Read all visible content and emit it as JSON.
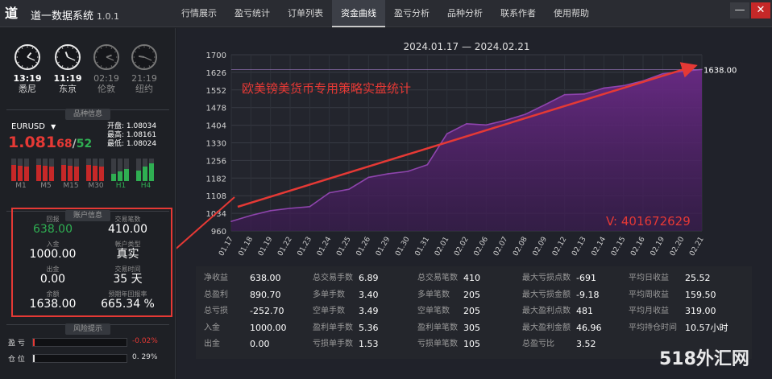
{
  "app": {
    "name": "道一数据系统",
    "version": "1.0.1",
    "logo": "道"
  },
  "tabs": [
    "行情展示",
    "盈亏统计",
    "订单列表",
    "资金曲线",
    "盈亏分析",
    "品种分析",
    "联系作者",
    "使用帮助"
  ],
  "active_tab": 3,
  "window": {
    "min_label": "—",
    "close_label": "✕"
  },
  "clocks": [
    {
      "time": "13:19",
      "city": "悉尼",
      "dim": false
    },
    {
      "time": "11:19",
      "city": "东京",
      "dim": false
    },
    {
      "time": "02:19",
      "city": "伦敦",
      "dim": true
    },
    {
      "time": "21:19",
      "city": "纽约",
      "dim": true
    }
  ],
  "sections": {
    "symbol": "品种信息",
    "account": "账户信息",
    "risk": "风险提示"
  },
  "symbol": {
    "name": "EURUSD",
    "dropdown": "▼",
    "price_main": "1.081",
    "price_red": "68",
    "slash": "/",
    "price_green": "52",
    "open": "开盘: 1.08034",
    "high": "最高: 1.08161",
    "low": "最低: 1.08024"
  },
  "timeframes": [
    {
      "label": "M1",
      "up": false,
      "level": 0.7
    },
    {
      "label": "M5",
      "up": false,
      "level": 0.7
    },
    {
      "label": "M15",
      "up": false,
      "level": 0.7
    },
    {
      "label": "M30",
      "up": false,
      "level": 0.7
    },
    {
      "label": "H1",
      "up": true,
      "level": 0.55
    },
    {
      "label": "H4",
      "up": true,
      "level": 0.8
    }
  ],
  "account": [
    {
      "k": "回报",
      "v": "638.00",
      "green": true
    },
    {
      "k": "交易笔数",
      "v": "410.00",
      "green": false
    },
    {
      "k": "入金",
      "v": "1000.00",
      "green": false
    },
    {
      "k": "帐户类型",
      "v": "真实",
      "green": false
    },
    {
      "k": "出金",
      "v": "0.00",
      "green": false
    },
    {
      "k": "交易时间",
      "v": "35 天",
      "green": false
    },
    {
      "k": "余额",
      "v": "1638.00",
      "green": false
    },
    {
      "k": "预期年回报率",
      "v": "665.34 %",
      "green": false
    }
  ],
  "risk": [
    {
      "label": "盈 亏",
      "value": "-0.02%",
      "color": "#e53935",
      "level": 0.01
    },
    {
      "label": "仓 位",
      "value": "0. 29%",
      "color": "#dddddd",
      "level": 0.0
    }
  ],
  "chart_data": {
    "type": "area",
    "title": "2024.01.17 — 2024.02.21",
    "annotation": "欧美镑美货币专用策略实盘统计",
    "contact": "V: 401672629",
    "last_label": "1638.00",
    "yticks": [
      960,
      1034,
      1108,
      1182,
      1256,
      1330,
      1404,
      1478,
      1552,
      1626,
      1700
    ],
    "ylim": [
      960,
      1700
    ],
    "categories": [
      "01.17",
      "01.18",
      "01.19",
      "01.22",
      "01.23",
      "01.24",
      "01.25",
      "01.26",
      "01.29",
      "01.30",
      "01.31",
      "02.01",
      "02.02",
      "02.06",
      "02.07",
      "02.08",
      "02.09",
      "02.12",
      "02.13",
      "02.14",
      "02.15",
      "02.16",
      "02.19",
      "02.20",
      "02.21"
    ],
    "values": [
      1000,
      1025,
      1045,
      1055,
      1062,
      1120,
      1135,
      1185,
      1200,
      1210,
      1238,
      1368,
      1410,
      1405,
      1425,
      1450,
      1490,
      1532,
      1535,
      1560,
      1570,
      1590,
      1620,
      1630,
      1638
    ],
    "line_color": "#8e44ad",
    "fill_color": "#4a2060",
    "grid": true
  },
  "stats": [
    [
      {
        "k": "净收益",
        "v": "638.00"
      },
      {
        "k": "总盈利",
        "v": "890.70"
      },
      {
        "k": "总亏损",
        "v": "-252.70"
      },
      {
        "k": "入金",
        "v": "1000.00"
      },
      {
        "k": "出金",
        "v": "0.00"
      }
    ],
    [
      {
        "k": "总交易手数",
        "v": "6.89"
      },
      {
        "k": "多单手数",
        "v": "3.40"
      },
      {
        "k": "空单手数",
        "v": "3.49"
      },
      {
        "k": "盈利单手数",
        "v": "5.36"
      },
      {
        "k": "亏损单手数",
        "v": "1.53"
      }
    ],
    [
      {
        "k": "总交易笔数",
        "v": "410"
      },
      {
        "k": "多单笔数",
        "v": "205"
      },
      {
        "k": "空单笔数",
        "v": "205"
      },
      {
        "k": "盈利单笔数",
        "v": "305"
      },
      {
        "k": "亏损单笔数",
        "v": "105"
      }
    ],
    [
      {
        "k": "最大亏损点数",
        "v": "-691"
      },
      {
        "k": "最大亏损金额",
        "v": "-9.18"
      },
      {
        "k": "最大盈利点数",
        "v": "481"
      },
      {
        "k": "最大盈利金额",
        "v": "46.96"
      },
      {
        "k": "总盈亏比",
        "v": "3.52"
      }
    ],
    [
      {
        "k": "平均日收益",
        "v": "25.52"
      },
      {
        "k": "平均周收益",
        "v": "159.50"
      },
      {
        "k": "平均月收益",
        "v": "319.00"
      },
      {
        "k": "平均持仓时间",
        "v": "10.57小时"
      },
      {
        "k": "",
        "v": ""
      }
    ]
  ],
  "watermark": "518外汇网"
}
